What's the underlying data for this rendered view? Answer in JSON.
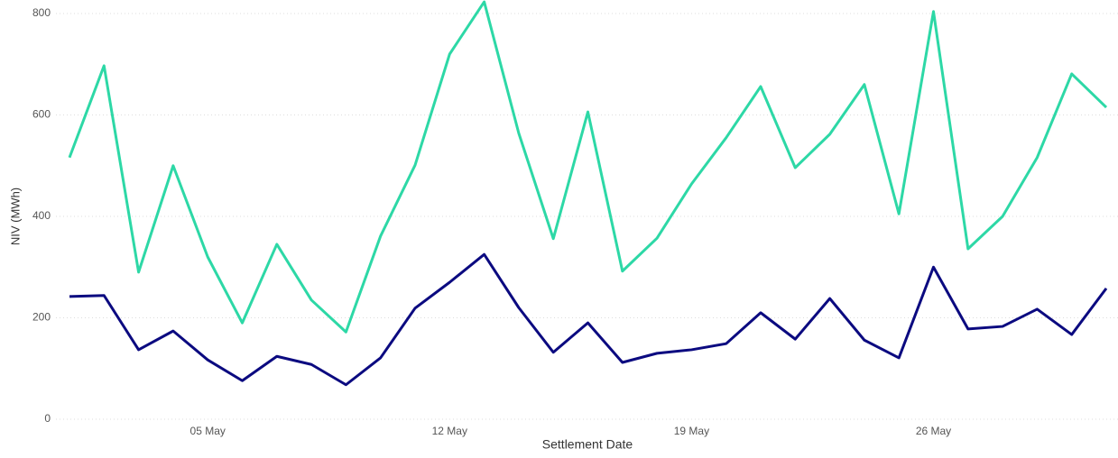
{
  "chart_data": {
    "type": "line",
    "x_label": "Settlement Date",
    "y_label": "NIV (MWh)",
    "x": [
      "01 May",
      "02 May",
      "03 May",
      "04 May",
      "05 May",
      "06 May",
      "07 May",
      "08 May",
      "09 May",
      "10 May",
      "11 May",
      "12 May",
      "13 May",
      "14 May",
      "15 May",
      "16 May",
      "17 May",
      "18 May",
      "19 May",
      "20 May",
      "21 May",
      "22 May",
      "23 May",
      "24 May",
      "25 May",
      "26 May",
      "27 May",
      "28 May",
      "29 May",
      "30 May",
      "31 May"
    ],
    "xticks": [
      "05 May",
      "12 May",
      "19 May",
      "26 May"
    ],
    "series": [
      {
        "color": "#2dd8a6",
        "values": [
          516,
          697,
          290,
          500,
          320,
          190,
          345,
          235,
          172,
          361,
          501,
          720,
          823,
          564,
          356,
          606,
          292,
          357,
          464,
          555,
          656,
          496,
          562,
          660,
          405,
          804,
          336,
          400,
          516,
          681,
          615
        ]
      },
      {
        "color": "#0b0a80",
        "values": [
          242,
          244,
          137,
          174,
          117,
          76,
          124,
          108,
          68,
          121,
          219,
          270,
          325,
          220,
          132,
          190,
          112,
          130,
          137,
          149,
          210,
          158,
          238,
          156,
          121,
          300,
          178,
          183,
          217,
          167,
          258
        ]
      }
    ],
    "ylim": [
      0,
      800
    ],
    "yticks": [
      0,
      200,
      400,
      600,
      800
    ],
    "grid": true
  }
}
